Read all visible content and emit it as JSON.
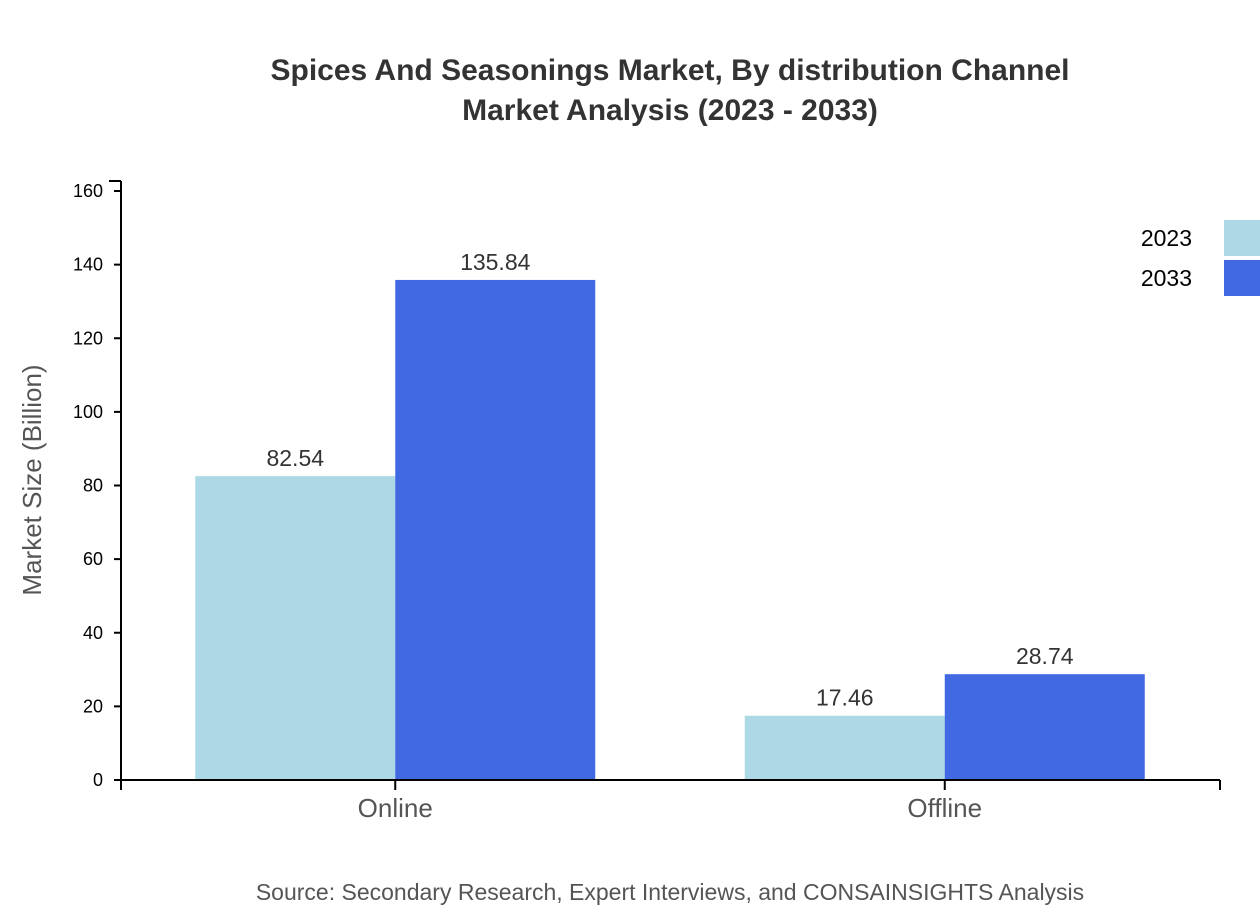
{
  "chart_data": {
    "type": "bar",
    "title": [
      "Spices And Seasonings Market, By distribution Channel",
      "Market Analysis (2023 - 2033)"
    ],
    "xlabel": "",
    "ylabel": "Market Size (Billion)",
    "categories": [
      "Online",
      "Offline"
    ],
    "series": [
      {
        "name": "2023",
        "values": [
          82.54,
          17.46
        ],
        "color": "#ADD8E6"
      },
      {
        "name": "2033",
        "values": [
          135.84,
          28.74
        ],
        "color": "#4169E1"
      }
    ],
    "ylim": [
      0,
      160
    ],
    "yticks": [
      0,
      20,
      40,
      60,
      80,
      100,
      120,
      140,
      160
    ],
    "grid": false,
    "legend": "top-right",
    "source": "Source: Secondary Research, Expert Interviews, and CONSAINSIGHTS Analysis"
  }
}
